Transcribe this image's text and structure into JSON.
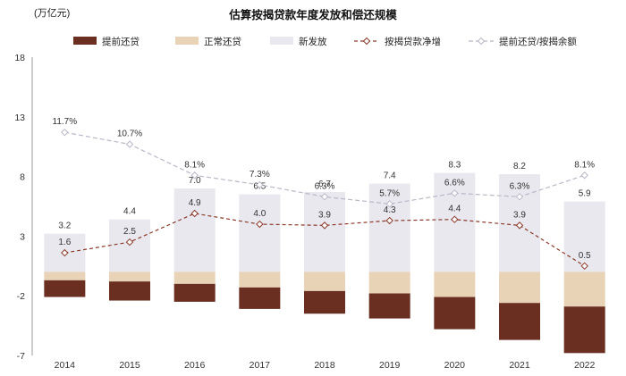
{
  "unit": "(万亿元)",
  "chart_data": {
    "type": "bar",
    "title": "估算按揭贷款年度发放和偿还规模",
    "categories": [
      "2014",
      "2015",
      "2016",
      "2017",
      "2018",
      "2019",
      "2020",
      "2021",
      "2022"
    ],
    "ylim": [
      -7,
      18
    ],
    "yticks": [
      18,
      13,
      8,
      3,
      -2,
      -7
    ],
    "legend_position": "top",
    "grid": false,
    "series": [
      {
        "name": "提前还贷",
        "type": "bar",
        "stack": "neg",
        "color": "#6b2f22",
        "values": [
          -1.4,
          -1.6,
          -1.5,
          -1.8,
          -1.9,
          -2.1,
          -2.7,
          -3.1,
          -3.9
        ]
      },
      {
        "name": "正常还贷",
        "type": "bar",
        "stack": "neg",
        "color": "#e8d3b6",
        "values": [
          -0.7,
          -0.8,
          -1.0,
          -1.3,
          -1.6,
          -1.8,
          -2.1,
          -2.6,
          -2.9
        ]
      },
      {
        "name": "新发放",
        "type": "bar",
        "stack": "pos",
        "color": "#e8e8ee",
        "values": [
          3.2,
          4.4,
          7.0,
          6.5,
          6.7,
          7.4,
          8.3,
          8.2,
          5.9
        ],
        "labels": [
          "3.2",
          "4.4",
          "7.0",
          "6.5",
          "6.7",
          "7.4",
          "8.3",
          "8.2",
          "5.9"
        ]
      },
      {
        "name": "按揭贷款净增",
        "type": "line",
        "color": "#8b3a2b",
        "dash": "4,3",
        "values": [
          1.6,
          2.5,
          4.9,
          4.0,
          3.9,
          4.3,
          4.4,
          3.9,
          0.5
        ],
        "labels": [
          "1.6",
          "2.5",
          "4.9",
          "4.0",
          "3.9",
          "4.3",
          "4.4",
          "3.9",
          "0.5"
        ]
      },
      {
        "name": "提前还贷/按揭余额",
        "type": "line",
        "color": "#b8b8c8",
        "dash": "5,3",
        "values": [
          11.7,
          10.7,
          8.1,
          7.3,
          6.3,
          5.7,
          6.6,
          6.3,
          8.1
        ],
        "labels": [
          "11.7%",
          "10.7%",
          "8.1%",
          "7.3%",
          "6.3%",
          "5.7%",
          "6.6%",
          "6.3%",
          "8.1%"
        ]
      }
    ]
  }
}
